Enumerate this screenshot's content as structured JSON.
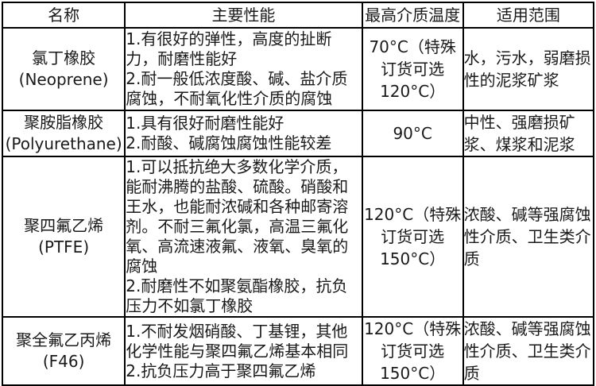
{
  "colors": {
    "border": "#000000",
    "text": "#1a1a1a",
    "background": "#ffffff"
  },
  "table": {
    "headers": {
      "name": "名称",
      "performance": "主要性能",
      "max_temp": "最高介质温度",
      "application": "适用范围"
    },
    "rows": [
      {
        "name_zh": "氯丁橡胶",
        "name_en": "(Neoprene)",
        "performance": [
          "1.有很好的弹性，高度的扯断力，耐磨性能好",
          "2.耐一般低浓度酸、碱、盐介质腐蚀，不耐氧化性介质的腐蚀"
        ],
        "max_temp": "70°C（特殊订货可选120°C）",
        "application": "水，污水，弱磨损性的泥浆矿浆"
      },
      {
        "name_zh": "聚胺脂橡胶",
        "name_en": "(Polyurethane)",
        "performance": [
          "1.具有很好耐磨性能好",
          "2.耐酸、碱腐蚀腐蚀性能较差"
        ],
        "max_temp": "90°C",
        "application": "中性、强磨损矿浆、煤浆和泥浆"
      },
      {
        "name_zh": "聚四氟乙烯",
        "name_en": "(PTFE)",
        "performance": [
          "1.可以抵抗绝大多数化学介质，能耐沸腾的盐酸、硫酸。硝酸和王水，也能耐浓碱和各种邮寄溶剂。不耐三氟化氯，高温三氟化氧、高流速液氟、液氧、臭氧的腐蚀",
          "2.耐磨性不如聚氨酯橡胶，抗负压力不如氯丁橡胶"
        ],
        "max_temp": "120°C（特殊订货可选150°C）",
        "application": "浓酸、碱等强腐蚀性介质、卫生类介质"
      },
      {
        "name_zh": "聚全氟乙丙烯",
        "name_en": "(F46)",
        "performance": [
          "1.不耐发烟硝酸、丁基锂，其他化学性能与聚四氟乙烯基本相同",
          "2.抗负压力高于聚四氟乙烯"
        ],
        "max_temp": "120°C（特殊订货可选150°C）",
        "application": "浓酸、碱等强腐蚀性介质、卫生类介质"
      }
    ]
  }
}
